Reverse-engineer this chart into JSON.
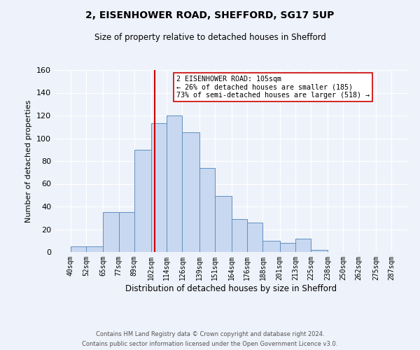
{
  "title1": "2, EISENHOWER ROAD, SHEFFORD, SG17 5UP",
  "title2": "Size of property relative to detached houses in Shefford",
  "xlabel": "Distribution of detached houses by size in Shefford",
  "ylabel": "Number of detached properties",
  "bin_labels": [
    "40sqm",
    "52sqm",
    "65sqm",
    "77sqm",
    "89sqm",
    "102sqm",
    "114sqm",
    "126sqm",
    "139sqm",
    "151sqm",
    "164sqm",
    "176sqm",
    "188sqm",
    "201sqm",
    "213sqm",
    "225sqm",
    "238sqm",
    "250sqm",
    "262sqm",
    "275sqm",
    "287sqm"
  ],
  "bin_edges": [
    40,
    52,
    65,
    77,
    89,
    102,
    114,
    126,
    139,
    151,
    164,
    176,
    188,
    201,
    213,
    225,
    238,
    250,
    262,
    275,
    287
  ],
  "counts": [
    5,
    5,
    35,
    35,
    90,
    113,
    120,
    105,
    74,
    49,
    29,
    26,
    10,
    8,
    12,
    2,
    0,
    0,
    0,
    0
  ],
  "bar_color": "#c8d8f0",
  "bar_edge_color": "#6090c0",
  "property_size": 105,
  "marker_line_color": "#cc0000",
  "annotation_line1": "2 EISENHOWER ROAD: 105sqm",
  "annotation_line2": "← 26% of detached houses are smaller (185)",
  "annotation_line3": "73% of semi-detached houses are larger (518) →",
  "annotation_box_edge": "#cc0000",
  "ylim": [
    0,
    160
  ],
  "yticks": [
    0,
    20,
    40,
    60,
    80,
    100,
    120,
    140,
    160
  ],
  "footer1": "Contains HM Land Registry data © Crown copyright and database right 2024.",
  "footer2": "Contains public sector information licensed under the Open Government Licence v3.0.",
  "background_color": "#eef2fa",
  "plot_bg_color": "#eef2fa"
}
